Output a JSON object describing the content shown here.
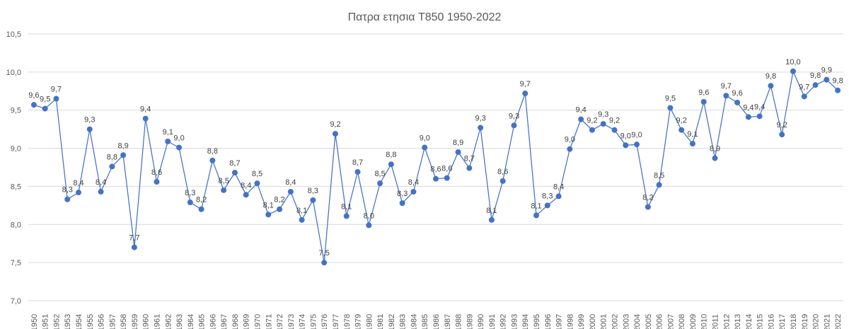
{
  "chart_data": {
    "type": "line",
    "title": "Πατρα ετησια T850 1950-2022",
    "xlabel": "",
    "ylabel": "",
    "ylim": [
      7.0,
      10.5
    ],
    "y_ticks": [
      "7,0",
      "7,5",
      "8,0",
      "8,5",
      "9,0",
      "9,5",
      "10,0",
      "10,5"
    ],
    "grid": true,
    "legend": "none",
    "series_color": "#4472c4",
    "categories": [
      "1950",
      "1951",
      "1952",
      "1953",
      "1954",
      "1955",
      "1956",
      "1957",
      "1958",
      "1959",
      "1960",
      "1961",
      "1962",
      "1963",
      "1964",
      "1965",
      "1966",
      "1967",
      "1968",
      "1969",
      "1970",
      "1971",
      "1972",
      "1973",
      "1974",
      "1975",
      "1976",
      "1977",
      "1978",
      "1979",
      "1980",
      "1981",
      "1982",
      "1983",
      "1984",
      "1985",
      "1986",
      "1987",
      "1988",
      "1989",
      "1990",
      "1991",
      "1992",
      "1993",
      "1994",
      "1995",
      "1996",
      "1997",
      "1998",
      "1999",
      "2000",
      "2001",
      "2002",
      "2003",
      "2004",
      "2005",
      "2006",
      "2007",
      "2008",
      "2009",
      "2010",
      "2011",
      "2012",
      "2013",
      "2014",
      "2015",
      "2016",
      "2017",
      "2018",
      "2019",
      "2020",
      "2021",
      "2022"
    ],
    "values": [
      9.57,
      9.52,
      9.65,
      8.33,
      8.42,
      9.25,
      8.43,
      8.76,
      8.91,
      7.7,
      9.39,
      8.56,
      9.09,
      9.01,
      8.29,
      8.2,
      8.84,
      8.45,
      8.68,
      8.39,
      8.54,
      8.13,
      8.2,
      8.43,
      8.06,
      8.32,
      7.5,
      9.19,
      8.11,
      8.69,
      7.99,
      8.54,
      8.79,
      8.28,
      8.43,
      9.01,
      8.6,
      8.61,
      8.95,
      8.74,
      9.27,
      8.06,
      8.57,
      9.3,
      9.72,
      8.12,
      8.25,
      8.37,
      8.99,
      9.38,
      9.24,
      9.32,
      9.24,
      9.04,
      9.05,
      8.23,
      8.52,
      9.53,
      9.24,
      9.06,
      9.61,
      8.87,
      9.69,
      9.6,
      9.41,
      9.42,
      9.82,
      9.18,
      10.01,
      9.68,
      9.83,
      9.9,
      9.76
    ],
    "data_labels": [
      "9,6",
      "9,5",
      "9,7",
      "8,3",
      "8,4",
      "9,3",
      "8,4",
      "8,8",
      "8,9",
      "7,7",
      "9,4",
      "8,6",
      "9,1",
      "9,0",
      "8,3",
      "8,2",
      "8,8",
      "8,5",
      "8,7",
      "8,4",
      "8,5",
      "8,1",
      "8,2",
      "8,4",
      "8,1",
      "8,3",
      "7,5",
      "9,2",
      "8,1",
      "8,7",
      "8,0",
      "8,5",
      "8,8",
      "8,3",
      "8,4",
      "9,0",
      "8,6",
      "8,6",
      "8,9",
      "8,7",
      "9,3",
      "8,1",
      "8,6",
      "9,3",
      "9,7",
      "8,1",
      "8,3",
      "8,4",
      "9,0",
      "9,4",
      "9,2",
      "9,3",
      "9,2",
      "9,0",
      "9,0",
      "8,2",
      "8,5",
      "9,5",
      "9,2",
      "9,1",
      "9,6",
      "8,9",
      "9,7",
      "9,6",
      "9,4",
      "9,4",
      "9,8",
      "9,2",
      "10,0",
      "9,7",
      "9,8",
      "9,9",
      "9,8"
    ]
  }
}
